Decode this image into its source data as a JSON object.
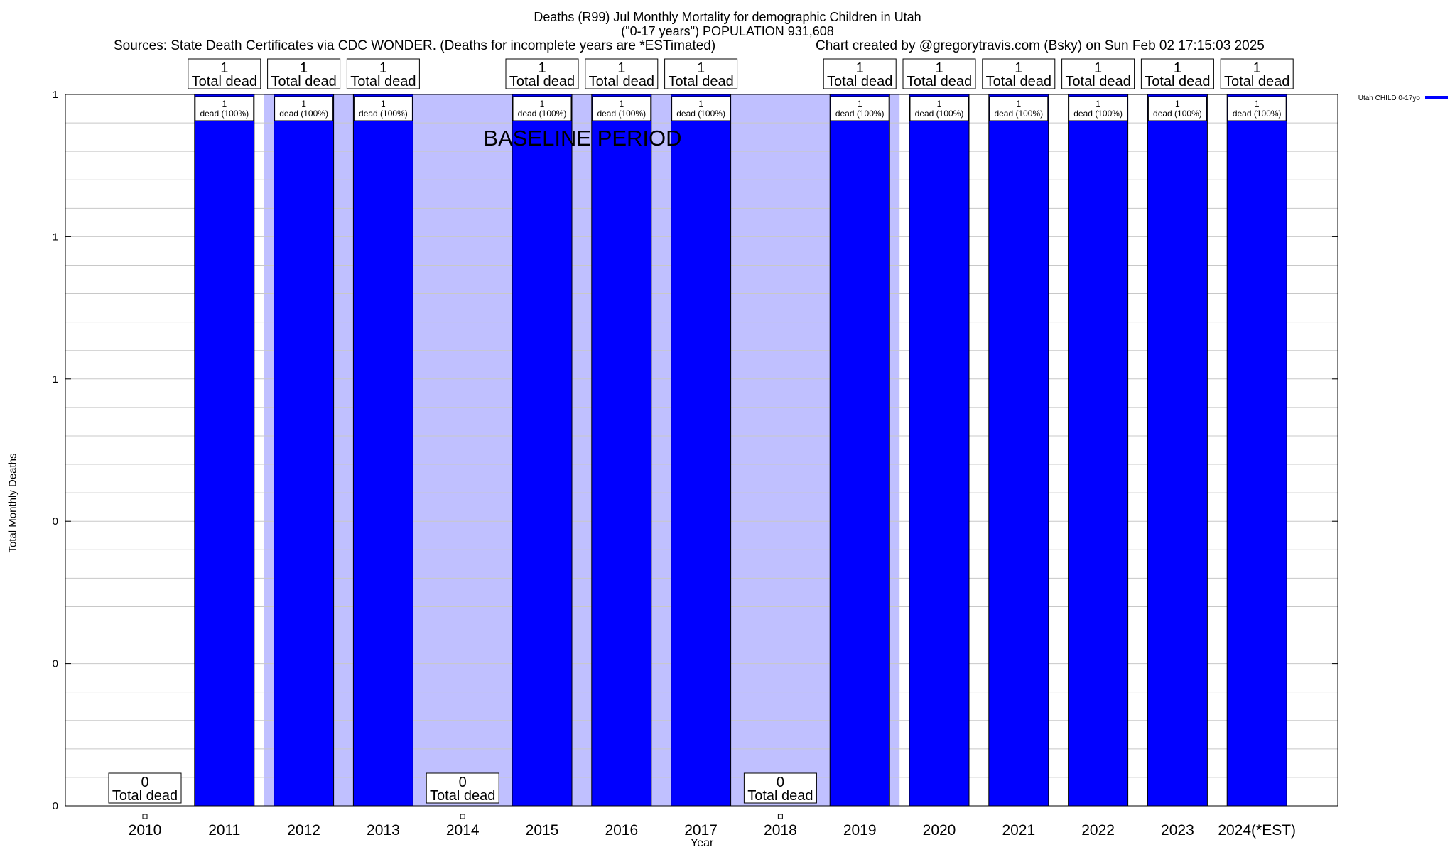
{
  "header": {
    "title_line1": "Deaths (R99) Jul Monthly Mortality for demographic Children in Utah",
    "title_line2": "(\"0-17 years\") POPULATION 931,608",
    "sources": "Sources: State Death Certificates via CDC WONDER. (Deaths for incomplete years are *ESTimated)",
    "credit": "Chart created by @gregorytravis.com (Bsky) on Sun Feb 02 17:15:03 2025"
  },
  "chart_data": {
    "type": "bar",
    "xlabel": "Year",
    "ylabel": "Total Monthly Deaths",
    "ylim": [
      0,
      1
    ],
    "y_tick_labels": [
      "0",
      "0",
      "0",
      "1",
      "1",
      "1"
    ],
    "categories": [
      "2010",
      "2011",
      "2012",
      "2013",
      "2014",
      "2015",
      "2016",
      "2017",
      "2018",
      "2019",
      "2020",
      "2021",
      "2022",
      "2023",
      "2024(*EST)"
    ],
    "series": [
      {
        "name": "Utah CHILD 0-17yo",
        "color": "#0000ff",
        "values": [
          0,
          1,
          1,
          1,
          0,
          1,
          1,
          1,
          0,
          1,
          1,
          1,
          1,
          1,
          1
        ]
      }
    ],
    "total_labels": [
      "0",
      "1",
      "1",
      "1",
      "0",
      "1",
      "1",
      "1",
      "0",
      "1",
      "1",
      "1",
      "1",
      "1",
      "1"
    ],
    "total_label_suffix": "Total dead",
    "bar_labels": [
      "",
      "1",
      "1",
      "1",
      "",
      "1",
      "1",
      "1",
      "",
      "1",
      "1",
      "1",
      "1",
      "1",
      "1"
    ],
    "bar_label_suffix": "dead (100%)",
    "baseline_period": {
      "from": "2012",
      "to": "2019",
      "label": "BASELINE PERIOD",
      "color": "#c0c0ff"
    },
    "legend": {
      "position": "top-right",
      "label": "Utah CHILD 0-17yo"
    },
    "grid": true
  }
}
